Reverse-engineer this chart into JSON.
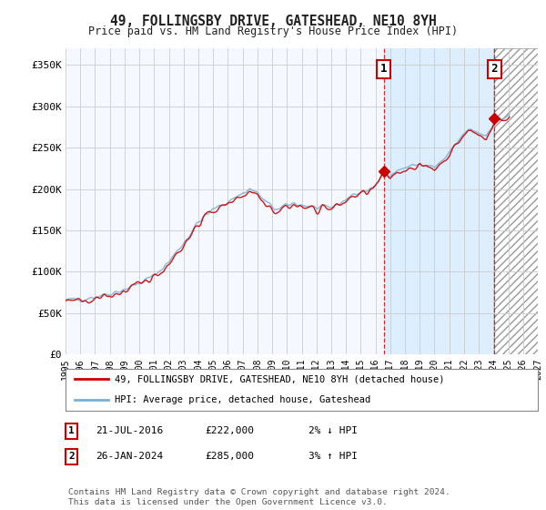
{
  "title": "49, FOLLINGSBY DRIVE, GATESHEAD, NE10 8YH",
  "subtitle": "Price paid vs. HM Land Registry's House Price Index (HPI)",
  "ylabel_values": [
    "£0",
    "£50K",
    "£100K",
    "£150K",
    "£200K",
    "£250K",
    "£300K",
    "£350K"
  ],
  "yticks": [
    0,
    50000,
    100000,
    150000,
    200000,
    250000,
    300000,
    350000
  ],
  "ylim": [
    0,
    370000
  ],
  "background_color": "#ffffff",
  "plot_bg_color": "#f5f8ff",
  "grid_color": "#cccccc",
  "hpi_line_color": "#7ab0d4",
  "price_line_color": "#cc0000",
  "highlight_color": "#ddeeff",
  "hatch_color": "#cccccc",
  "marker1_x": 2016.55,
  "marker2_x": 2024.07,
  "marker1_price": 222000,
  "marker2_price": 285000,
  "legend1_text": "49, FOLLINGSBY DRIVE, GATESHEAD, NE10 8YH (detached house)",
  "legend2_text": "HPI: Average price, detached house, Gateshead",
  "footer_text": "Contains HM Land Registry data © Crown copyright and database right 2024.\nThis data is licensed under the Open Government Licence v3.0.",
  "xtick_years": [
    1995,
    1996,
    1997,
    1998,
    1999,
    2000,
    2001,
    2002,
    2003,
    2004,
    2005,
    2006,
    2007,
    2008,
    2009,
    2010,
    2011,
    2012,
    2013,
    2014,
    2015,
    2016,
    2017,
    2018,
    2019,
    2020,
    2021,
    2022,
    2023,
    2024,
    2025,
    2026,
    2027
  ],
  "xlim": [
    1995,
    2027
  ],
  "highlight_start": 2016.55,
  "highlight_end": 2024.07,
  "hatch_start": 2024.07,
  "hatch_end": 2027
}
